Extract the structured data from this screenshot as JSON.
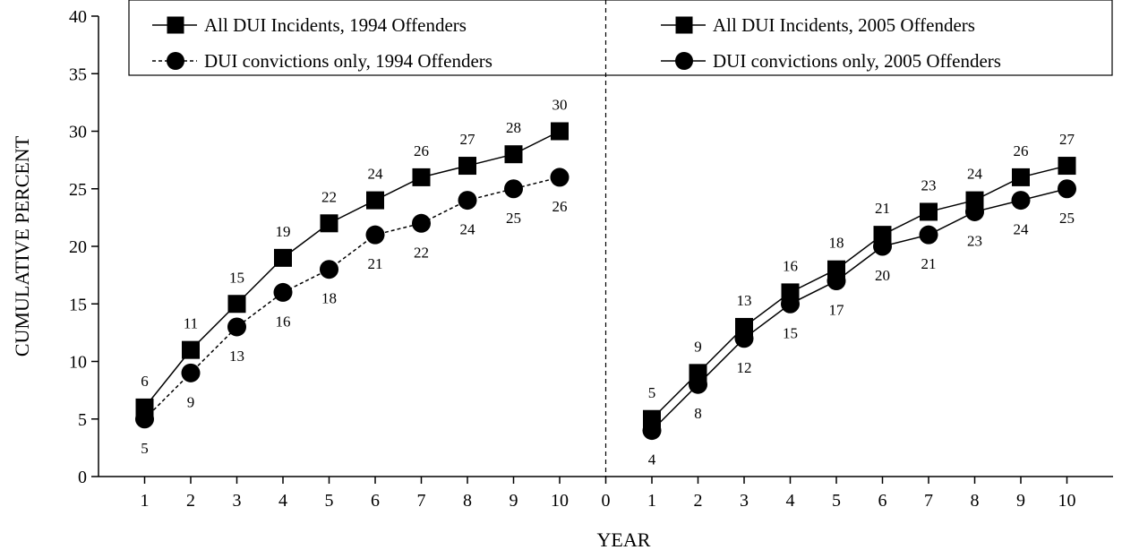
{
  "chart_data": {
    "type": "line",
    "title": "",
    "xlabel": "YEAR",
    "ylabel": "CUMULATIVE PERCENT",
    "ylim": [
      0,
      40
    ],
    "yticks": [
      0,
      5,
      10,
      15,
      20,
      25,
      30,
      35,
      40
    ],
    "xtick_labels": [
      "1",
      "2",
      "3",
      "4",
      "5",
      "6",
      "7",
      "8",
      "9",
      "10",
      "0",
      "1",
      "2",
      "3",
      "4",
      "5",
      "6",
      "7",
      "8",
      "9",
      "10"
    ],
    "x": [
      1,
      2,
      3,
      4,
      5,
      6,
      7,
      8,
      9,
      10
    ],
    "grid": false,
    "legend_position": "top",
    "panel_divider": "dashed vertical line at year 0",
    "panels": [
      {
        "cohort": "1994",
        "series": [
          {
            "name": "All DUI Incidents, 1994 Offenders",
            "marker": "square",
            "line": "solid",
            "values": [
              6,
              11,
              15,
              19,
              22,
              24,
              26,
              27,
              28,
              30
            ],
            "labels": [
              "6",
              "11",
              "15",
              "19",
              "22",
              "24",
              "26",
              "27",
              "28",
              "30"
            ],
            "label_position": "above"
          },
          {
            "name": "DUI convictions only, 1994 Offenders",
            "marker": "circle",
            "line": "dashed",
            "values": [
              5,
              9,
              13,
              16,
              18,
              21,
              22,
              24,
              25,
              26
            ],
            "labels": [
              "5",
              "9",
              "13",
              "16",
              "18",
              "21",
              "22",
              "24",
              "25",
              "26"
            ],
            "label_position": "below"
          }
        ]
      },
      {
        "cohort": "2005",
        "series": [
          {
            "name": "All DUI Incidents, 2005 Offenders",
            "marker": "square",
            "line": "solid",
            "values": [
              5,
              9,
              13,
              16,
              18,
              21,
              23,
              24,
              26,
              27
            ],
            "labels": [
              "5",
              "9",
              "13",
              "16",
              "18",
              "21",
              "23",
              "24",
              "26",
              "27"
            ],
            "label_position": "above"
          },
          {
            "name": "DUI convictions only, 2005 Offenders",
            "marker": "circle",
            "line": "solid",
            "values": [
              4,
              8,
              12,
              15,
              17,
              20,
              21,
              23,
              24,
              25
            ],
            "labels": [
              "4",
              "8",
              "12",
              "15",
              "17",
              "20",
              "21",
              "23",
              "24",
              "25"
            ],
            "label_position": "below"
          }
        ]
      }
    ]
  }
}
